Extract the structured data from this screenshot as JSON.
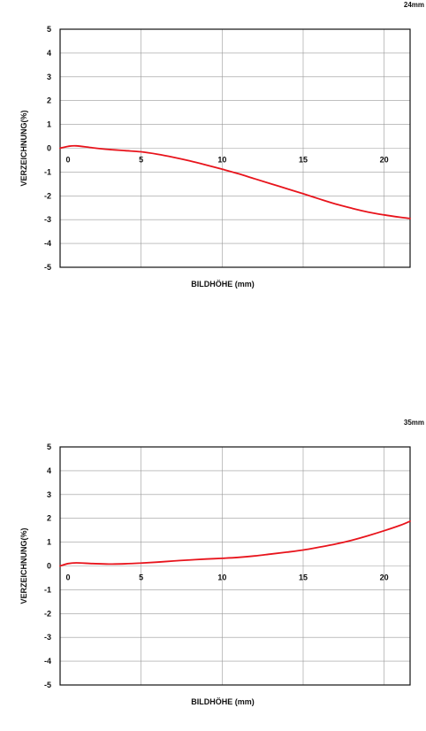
{
  "chart_data": [
    {
      "type": "line",
      "title": "24mm",
      "xlabel": "BILDHÖHE (mm)",
      "ylabel": "VERZEICHNUNG(%)",
      "xlim": [
        0,
        21.6
      ],
      "ylim": [
        -5,
        5
      ],
      "xticks": [
        0,
        5,
        10,
        15,
        20
      ],
      "yticks": [
        5,
        4,
        3,
        2,
        1,
        0,
        -1,
        -2,
        -3,
        -4,
        -5
      ],
      "grid": true,
      "color": "#e8141c",
      "series": [
        {
          "x": [
            0,
            0.5,
            1,
            2,
            3,
            4,
            5,
            6,
            7,
            8,
            9,
            10,
            11,
            12,
            13,
            14,
            15,
            16,
            17,
            18,
            19,
            20,
            21,
            21.6
          ],
          "values": [
            0,
            0.08,
            0.1,
            0.02,
            -0.05,
            -0.1,
            -0.15,
            -0.25,
            -0.38,
            -0.53,
            -0.7,
            -0.88,
            -1.07,
            -1.28,
            -1.49,
            -1.7,
            -1.91,
            -2.13,
            -2.34,
            -2.52,
            -2.68,
            -2.8,
            -2.9,
            -2.95
          ]
        }
      ]
    },
    {
      "type": "line",
      "title": "35mm",
      "xlabel": "BILDHÖHE (mm)",
      "ylabel": "VERZEICHNUNG(%)",
      "xlim": [
        0,
        21.6
      ],
      "ylim": [
        -5,
        5
      ],
      "xticks": [
        0,
        5,
        10,
        15,
        20
      ],
      "yticks": [
        5,
        4,
        3,
        2,
        1,
        0,
        -1,
        -2,
        -3,
        -4,
        -5
      ],
      "grid": true,
      "color": "#e8141c",
      "series": [
        {
          "x": [
            0,
            0.5,
            1,
            2,
            3,
            4,
            5,
            6,
            7,
            8,
            9,
            10,
            11,
            12,
            13,
            14,
            15,
            16,
            17,
            18,
            19,
            20,
            21,
            21.6
          ],
          "values": [
            0,
            0.1,
            0.13,
            0.1,
            0.08,
            0.09,
            0.12,
            0.16,
            0.21,
            0.25,
            0.29,
            0.32,
            0.36,
            0.42,
            0.5,
            0.58,
            0.67,
            0.79,
            0.92,
            1.08,
            1.27,
            1.48,
            1.71,
            1.88
          ]
        }
      ]
    }
  ]
}
